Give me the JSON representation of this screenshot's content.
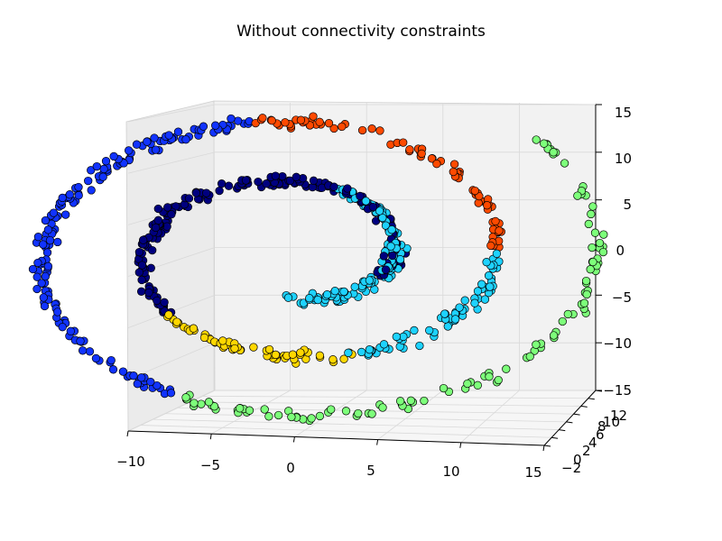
{
  "chart_data": {
    "type": "scatter",
    "title": "Without connectivity constraints",
    "xlabel": "",
    "ylabel": "",
    "zlabel": "",
    "xlim": [
      -10,
      15
    ],
    "ylim": [
      -2,
      13
    ],
    "zlim": [
      -15,
      15
    ],
    "x_ticks": [
      "−10",
      "−5",
      "0",
      "5",
      "10",
      "15"
    ],
    "y_ticks": [
      "−2",
      "0",
      "2",
      "4",
      "6",
      "8",
      "10",
      "12"
    ],
    "z_ticks": [
      "−15",
      "−10",
      "−5",
      "0",
      "5",
      "10",
      "15"
    ],
    "grid": true,
    "legend": "none",
    "projection": "3d",
    "shape": "swiss-roll",
    "clusters": [
      {
        "color": "#00007f",
        "t_range": [
          7.5,
          10.1
        ],
        "count": 150
      },
      {
        "color": "#ffd700",
        "t_range": [
          10.1,
          11.3
        ],
        "count": 60
      },
      {
        "color": "#1ed2ff",
        "t_range": [
          11.3,
          12.6
        ],
        "count": 70
      },
      {
        "color": "#ff4a00",
        "t_range": [
          12.6,
          14.3
        ],
        "count": 80
      },
      {
        "color": "#1133ff",
        "t_range": [
          14.3,
          16.8
        ],
        "count": 170
      },
      {
        "color": "#7dff7a",
        "t_range": [
          16.8,
          19.6
        ],
        "count": 110
      },
      {
        "color": "#1ed2ff",
        "t_range": [
          4.7,
          7.5
        ],
        "count": 130
      },
      {
        "color": "#00007f",
        "t_range": [
          5.9,
          7.5
        ],
        "count": 60
      }
    ]
  }
}
